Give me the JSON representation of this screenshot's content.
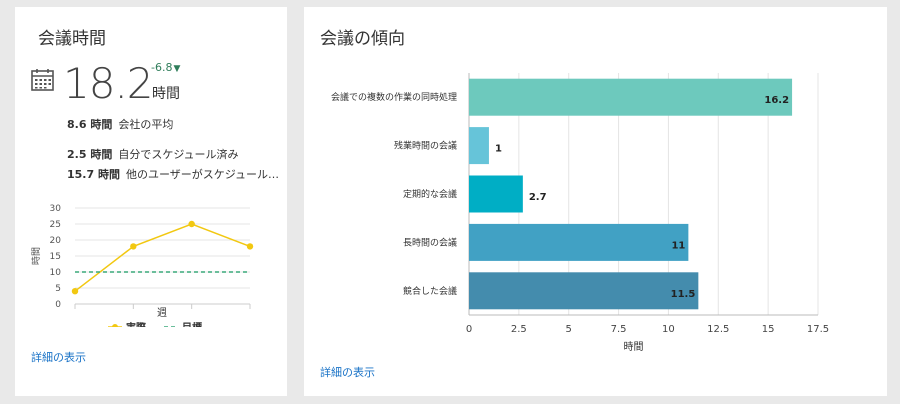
{
  "left_card": {
    "title": "会議時間",
    "big_value": "18.2",
    "delta": "-6.8",
    "unit": "時間",
    "stats": [
      {
        "value": "8.6 時間",
        "label": "会社の平均"
      },
      {
        "value": "2.5 時間",
        "label": "自分でスケジュール済み"
      },
      {
        "value": "15.7 時間",
        "label": "他のユーザーがスケジュール…"
      }
    ],
    "details_link": "詳細の表示"
  },
  "right_card": {
    "title": "会議の傾向",
    "details_link": "詳細の表示"
  },
  "colors": {
    "actual": "#f2c811",
    "target": "#3aa87a",
    "bars": [
      "#6dc9bd",
      "#66c4d9",
      "#00aec5",
      "#41a1c4",
      "#448cad"
    ],
    "link": "#1a73c7"
  },
  "chart_data": [
    {
      "type": "line",
      "ylabel": "時間",
      "xlabel": "週",
      "ylim": [
        0,
        30
      ],
      "yticks": [
        "0",
        "5",
        "10",
        "15",
        "20",
        "25",
        "30"
      ],
      "x": [
        1,
        2,
        3,
        4
      ],
      "series": [
        {
          "name": "実際",
          "values": [
            4,
            18,
            25,
            18
          ],
          "color": "#f2c811",
          "style": "solid"
        },
        {
          "name": "目標",
          "values": [
            10,
            10,
            10,
            10
          ],
          "color": "#3aa87a",
          "style": "dashed"
        }
      ],
      "legend_position": "bottom",
      "grid": true
    },
    {
      "type": "bar",
      "orientation": "horizontal",
      "categories": [
        "会議での複数の作業の同時処理",
        "残業時間の会議",
        "定期的な会議",
        "長時間の会議",
        "競合した会議"
      ],
      "values": [
        16.2,
        1,
        2.7,
        11,
        11.5
      ],
      "value_labels": [
        "16.2",
        "1",
        "2.7",
        "11",
        "11.5"
      ],
      "xlabel": "時間",
      "xlim": [
        0,
        17.5
      ],
      "xticks": [
        "0",
        "2.5",
        "5",
        "7.5",
        "10",
        "12.5",
        "15",
        "17.5"
      ],
      "grid": true
    }
  ]
}
